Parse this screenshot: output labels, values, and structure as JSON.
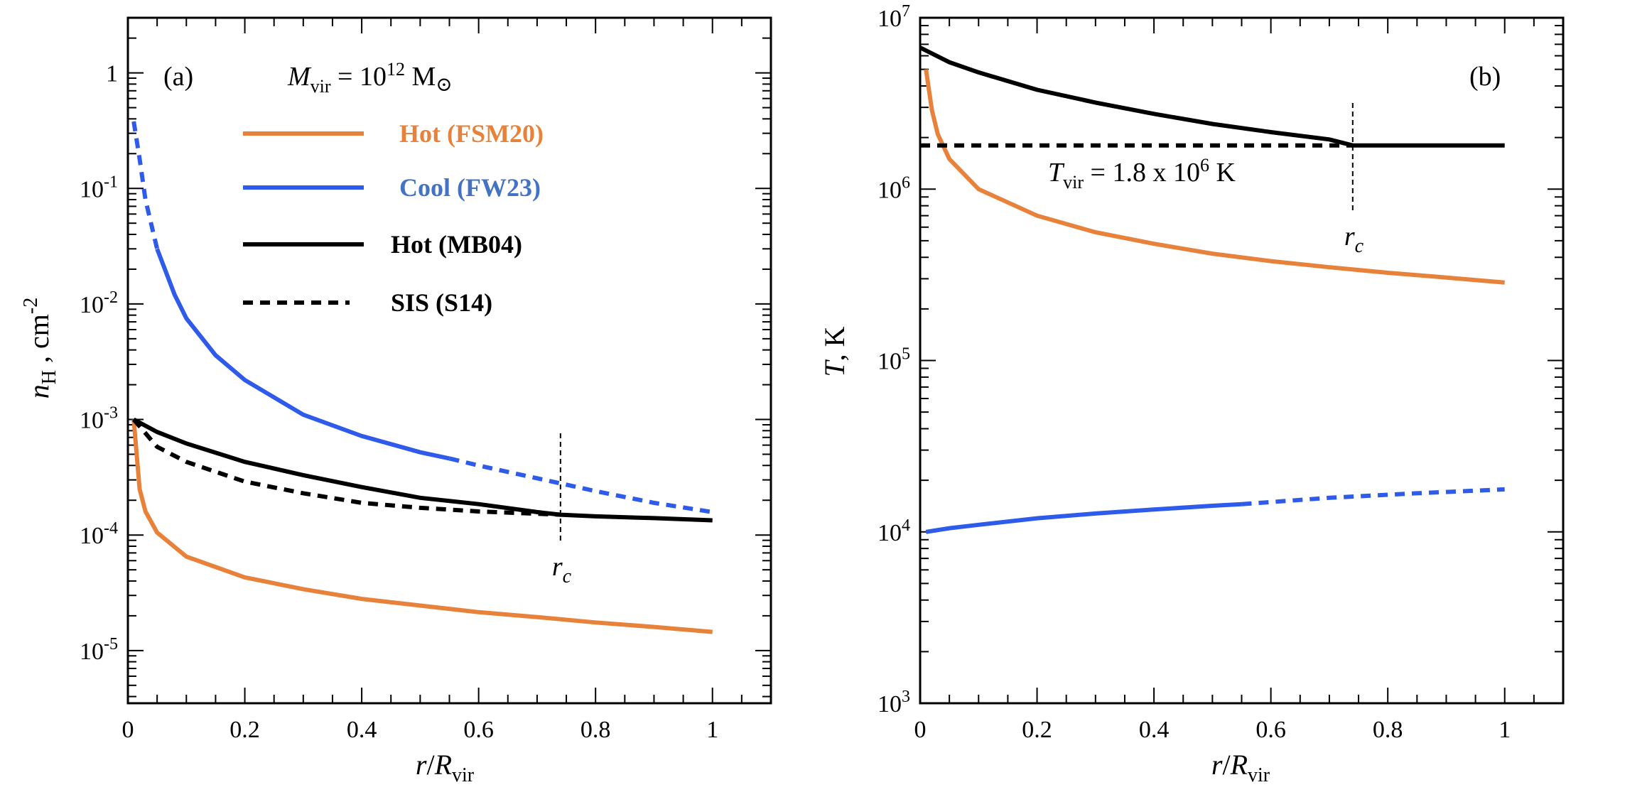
{
  "chart_data": [
    {
      "panel_label": "(a)",
      "type": "line",
      "xlabel": "r/Rvir",
      "ylabel": "nH , cm-2",
      "xlim": [
        0,
        1.1
      ],
      "ylim": [
        3.5e-06,
        3
      ],
      "yscale": "log",
      "x_ticks": [
        "0",
        "0.2",
        "0.4",
        "0.6",
        "0.8",
        "1"
      ],
      "y_ticks": [
        "1",
        "10-1",
        "10-2",
        "10-3",
        "10-4",
        "10-5"
      ],
      "annotation": "Mvir = 1012 M⊙",
      "core_radius": {
        "x": 0.74,
        "label": "rc"
      },
      "legend": [
        {
          "label": "Hot (FSM20)",
          "color": "#E8823A",
          "style": "solid"
        },
        {
          "label": "Cool (FW23)",
          "color": "#2F5BEA",
          "style": "solid"
        },
        {
          "label": "Hot (MB04)",
          "color": "#000000",
          "style": "solid"
        },
        {
          "label": "SIS (S14)",
          "color": "#000000",
          "style": "dashed"
        }
      ],
      "series": [
        {
          "name": "Hot (FSM20)",
          "color": "#E8823A",
          "x": [
            0.01,
            0.02,
            0.03,
            0.05,
            0.1,
            0.2,
            0.3,
            0.4,
            0.5,
            0.6,
            0.7,
            0.8,
            0.9,
            1.0
          ],
          "y": [
            0.001,
            0.00025,
            0.00016,
            0.000105,
            6.5e-05,
            4.3e-05,
            3.4e-05,
            2.8e-05,
            2.45e-05,
            2.15e-05,
            1.95e-05,
            1.75e-05,
            1.6e-05,
            1.45e-05
          ]
        },
        {
          "name": "Cool (FW23)",
          "color": "#2F5BEA",
          "x": [
            0.01,
            0.02,
            0.03,
            0.05,
            0.08,
            0.1,
            0.15,
            0.2,
            0.3,
            0.4,
            0.5,
            0.55
          ],
          "y": [
            0.38,
            0.18,
            0.08,
            0.03,
            0.012,
            0.0075,
            0.0036,
            0.0022,
            0.0011,
            0.00072,
            0.00052,
            0.00046
          ],
          "dashed_x": [
            0.01,
            0.02,
            0.03,
            0.05
          ],
          "dashed_y": [
            0.38,
            0.18,
            0.08,
            0.03
          ],
          "continuation_x": [
            0.55,
            0.6,
            0.7,
            0.8,
            0.9,
            1.0
          ],
          "continuation_y": [
            0.00046,
            0.0004,
            0.00031,
            0.00024,
            0.00019,
            0.000158
          ]
        },
        {
          "name": "Hot (MB04)",
          "color": "#000000",
          "x": [
            0.01,
            0.05,
            0.1,
            0.2,
            0.3,
            0.4,
            0.5,
            0.6,
            0.7,
            0.74,
            0.8,
            0.9,
            1.0
          ],
          "y": [
            0.001,
            0.00078,
            0.00062,
            0.00043,
            0.00033,
            0.00026,
            0.00021,
            0.000185,
            0.000158,
            0.00015,
            0.000145,
            0.00014,
            0.000134
          ]
        },
        {
          "name": "SIS (S14)",
          "color": "#000000",
          "x": [
            0.01,
            0.05,
            0.1,
            0.2,
            0.3,
            0.4,
            0.5,
            0.6,
            0.7,
            0.74
          ],
          "y": [
            0.001,
            0.00058,
            0.00043,
            0.00029,
            0.00023,
            0.00019,
            0.000172,
            0.00016,
            0.000153,
            0.00015
          ]
        }
      ]
    },
    {
      "panel_label": "(b)",
      "type": "line",
      "xlabel": "r/Rvir",
      "ylabel": "T, K",
      "xlim": [
        0,
        1.1
      ],
      "ylim": [
        1000,
        10000000
      ],
      "yscale": "log",
      "x_ticks": [
        "0",
        "0.2",
        "0.4",
        "0.6",
        "0.8",
        "1"
      ],
      "y_ticks": [
        "107",
        "106",
        "105",
        "104",
        "103"
      ],
      "annotation": "Tvir = 1.8 x 106 K",
      "core_radius": {
        "x": 0.74,
        "label": "rc"
      },
      "series": [
        {
          "name": "Hot (FSM20)",
          "color": "#E8823A",
          "x": [
            0.01,
            0.02,
            0.03,
            0.05,
            0.1,
            0.2,
            0.3,
            0.4,
            0.5,
            0.6,
            0.7,
            0.8,
            0.9,
            1.0
          ],
          "y": [
            5000000,
            2900000,
            2100000,
            1500000,
            1000000,
            700000,
            560000,
            480000,
            420000,
            380000,
            350000,
            325000,
            305000,
            285000
          ]
        },
        {
          "name": "Cool (FW23)",
          "color": "#2F5BEA",
          "x": [
            0.01,
            0.05,
            0.1,
            0.2,
            0.3,
            0.4,
            0.5,
            0.55
          ],
          "y": [
            10000,
            10500,
            11000,
            12000,
            12800,
            13500,
            14200,
            14500
          ],
          "continuation_x": [
            0.55,
            0.7,
            0.85,
            1.0
          ],
          "continuation_y": [
            14500,
            15800,
            16800,
            17700
          ]
        },
        {
          "name": "Hot (MB04)",
          "color": "#000000",
          "x": [
            0.0,
            0.05,
            0.1,
            0.2,
            0.3,
            0.4,
            0.5,
            0.6,
            0.7,
            0.74,
            0.8,
            0.9,
            1.0
          ],
          "y": [
            6700000,
            5500000,
            4800000,
            3800000,
            3200000,
            2750000,
            2400000,
            2150000,
            1950000,
            1800000,
            1800000,
            1800000,
            1800000
          ]
        },
        {
          "name": "SIS (S14)",
          "color": "#000000",
          "x": [
            0.0,
            0.74
          ],
          "y": [
            1800000,
            1800000
          ]
        }
      ]
    }
  ]
}
